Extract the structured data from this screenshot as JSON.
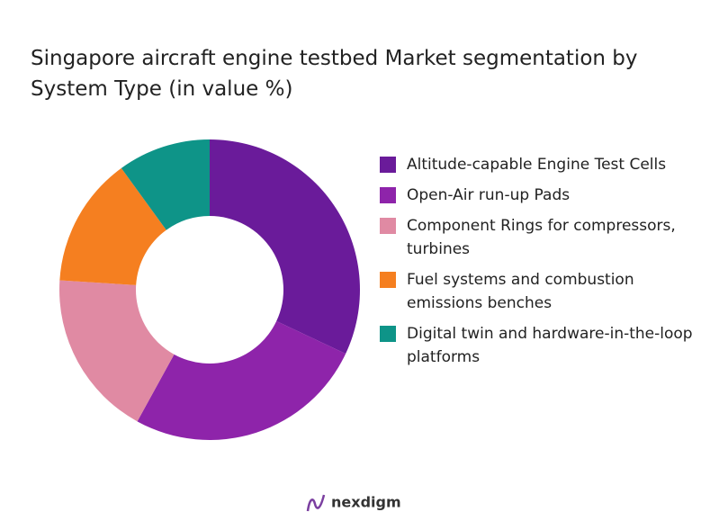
{
  "chart_data": {
    "type": "donut",
    "title": "Singapore aircraft engine testbed Market segmentation by System Type (in value %)",
    "categories": [
      "Altitude-capable Engine Test Cells",
      "Open-Air run-up Pads",
      "Component Rings for compressors, turbines",
      "Fuel systems and combustion emissions benches",
      "Digital twin and hardware-in-the-loop platforms"
    ],
    "values": [
      32,
      26,
      18,
      14,
      10
    ],
    "colors": [
      "#6a1b9a",
      "#8e24aa",
      "#e08aa3",
      "#f57f20",
      "#0e9488"
    ],
    "legend": "right"
  },
  "logo": "nexdigm"
}
